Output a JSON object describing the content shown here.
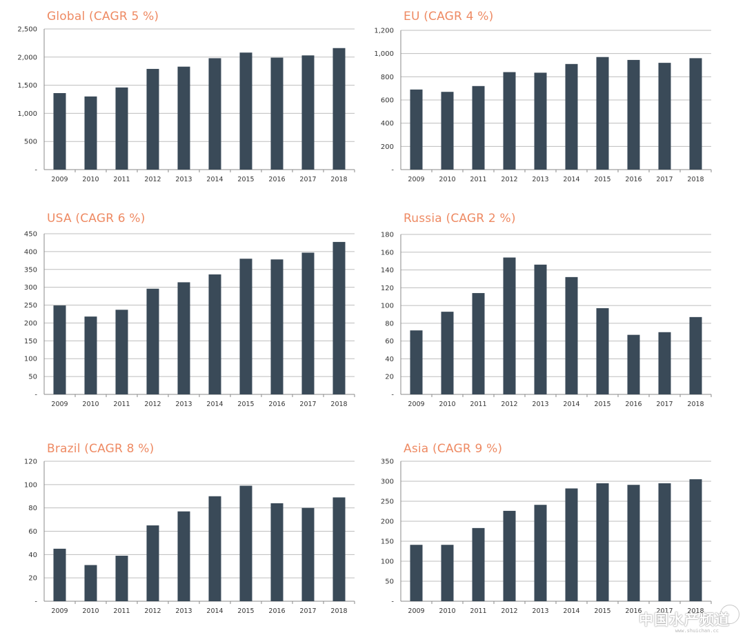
{
  "colors": {
    "bar": "#3a4a58",
    "title": "#ee8a63",
    "grid": "#bdbdbd",
    "axis": "#888888"
  },
  "watermark": {
    "text": "中国水产频道",
    "sub": "www.shuichan.cc"
  },
  "chart_data": [
    {
      "type": "bar",
      "title": "Global (CAGR 5 %)",
      "categories": [
        "2009",
        "2010",
        "2011",
        "2012",
        "2013",
        "2014",
        "2015",
        "2016",
        "2017",
        "2018"
      ],
      "values": [
        1360,
        1300,
        1460,
        1790,
        1830,
        1980,
        2080,
        1990,
        2030,
        2160
      ],
      "ylim": [
        0,
        2500
      ],
      "yticks": [
        "-",
        "500",
        "1,000",
        "1,500",
        "2,000",
        "2,500"
      ],
      "grid": true
    },
    {
      "type": "bar",
      "title": "EU (CAGR 4 %)",
      "categories": [
        "2009",
        "2010",
        "2011",
        "2012",
        "2013",
        "2014",
        "2015",
        "2016",
        "2017",
        "2018"
      ],
      "values": [
        690,
        670,
        720,
        840,
        835,
        910,
        970,
        945,
        920,
        960
      ],
      "ylim": [
        0,
        1200
      ],
      "yticks": [
        "-",
        "200",
        "400",
        "600",
        "800",
        "1,000",
        "1,200"
      ],
      "grid": true
    },
    {
      "type": "bar",
      "title": "USA (CAGR 6 %)",
      "categories": [
        "2009",
        "2010",
        "2011",
        "2012",
        "2013",
        "2014",
        "2015",
        "2016",
        "2017",
        "2018"
      ],
      "values": [
        249,
        218,
        237,
        296,
        314,
        336,
        380,
        378,
        397,
        427
      ],
      "ylim": [
        0,
        450
      ],
      "yticks": [
        "-",
        "50",
        "100",
        "150",
        "200",
        "250",
        "300",
        "350",
        "400",
        "450"
      ],
      "grid": true
    },
    {
      "type": "bar",
      "title": "Russia (CAGR 2 %)",
      "categories": [
        "2009",
        "2010",
        "2011",
        "2012",
        "2013",
        "2014",
        "2015",
        "2016",
        "2017",
        "2018"
      ],
      "values": [
        72,
        93,
        114,
        154,
        146,
        132,
        97,
        67,
        70,
        87
      ],
      "ylim": [
        0,
        180
      ],
      "yticks": [
        "-",
        "20",
        "40",
        "60",
        "80",
        "100",
        "120",
        "140",
        "160",
        "180"
      ],
      "grid": true
    },
    {
      "type": "bar",
      "title": "Brazil (CAGR 8 %)",
      "categories": [
        "2009",
        "2010",
        "2011",
        "2012",
        "2013",
        "2014",
        "2015",
        "2016",
        "2017",
        "2018"
      ],
      "values": [
        45,
        31,
        39,
        65,
        77,
        90,
        99,
        84,
        80,
        89
      ],
      "ylim": [
        0,
        120
      ],
      "yticks": [
        "-",
        "20",
        "40",
        "60",
        "80",
        "100",
        "120"
      ],
      "grid": true
    },
    {
      "type": "bar",
      "title": "Asia (CAGR 9 %)",
      "categories": [
        "2009",
        "2010",
        "2011",
        "2012",
        "2013",
        "2014",
        "2015",
        "2016",
        "2017",
        "2018"
      ],
      "values": [
        141,
        141,
        183,
        226,
        241,
        282,
        295,
        291,
        295,
        305
      ],
      "ylim": [
        0,
        350
      ],
      "yticks": [
        "-",
        "50",
        "100",
        "150",
        "200",
        "250",
        "300",
        "350"
      ],
      "grid": true
    }
  ]
}
